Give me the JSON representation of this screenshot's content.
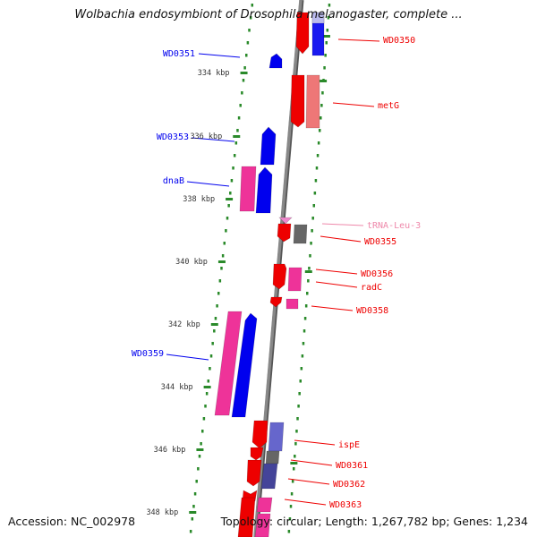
{
  "title": "Wolbachia endosymbiont of Drosophila melanogaster, complete ...",
  "accession": "Accession: NC_002978",
  "summary": "Topology: circular; Length: 1,267,782 bp; Genes: 1,234",
  "colors": {
    "forward": "#0000ee",
    "reverse": "#ee0000",
    "pink": "#ee3399",
    "rrna": "#666666",
    "trna_label": "#ee88aa",
    "tick": "#2a8a2a",
    "backbone": "#888888"
  },
  "kbp_ticks": [
    {
      "label": "334 kbp"
    },
    {
      "label": "336 kbp"
    },
    {
      "label": "338 kbp"
    },
    {
      "label": "340 kbp"
    },
    {
      "label": "342 kbp"
    },
    {
      "label": "344 kbp"
    },
    {
      "label": "346 kbp"
    },
    {
      "label": "348 kbp"
    }
  ],
  "genes": [
    {
      "label": "WD0350",
      "strand": "reverse",
      "color_key": "reverse"
    },
    {
      "label": "WD0351",
      "strand": "forward",
      "color_key": "forward"
    },
    {
      "label": "metG",
      "strand": "reverse",
      "color_key": "reverse"
    },
    {
      "label": "WD0353",
      "strand": "forward",
      "color_key": "forward"
    },
    {
      "label": "dnaB",
      "strand": "forward",
      "color_key": "forward"
    },
    {
      "label": "tRNA-Leu-3",
      "strand": "reverse",
      "color_key": "trna_label"
    },
    {
      "label": "WD0355",
      "strand": "reverse",
      "color_key": "reverse"
    },
    {
      "label": "WD0356",
      "strand": "reverse",
      "color_key": "reverse"
    },
    {
      "label": "radC",
      "strand": "reverse",
      "color_key": "reverse"
    },
    {
      "label": "WD0358",
      "strand": "reverse",
      "color_key": "reverse"
    },
    {
      "label": "WD0359",
      "strand": "forward",
      "color_key": "forward"
    },
    {
      "label": "ispE",
      "strand": "reverse",
      "color_key": "reverse"
    },
    {
      "label": "WD0361",
      "strand": "reverse",
      "color_key": "reverse"
    },
    {
      "label": "WD0362",
      "strand": "reverse",
      "color_key": "reverse"
    },
    {
      "label": "WD0363",
      "strand": "reverse",
      "color_key": "reverse"
    }
  ]
}
